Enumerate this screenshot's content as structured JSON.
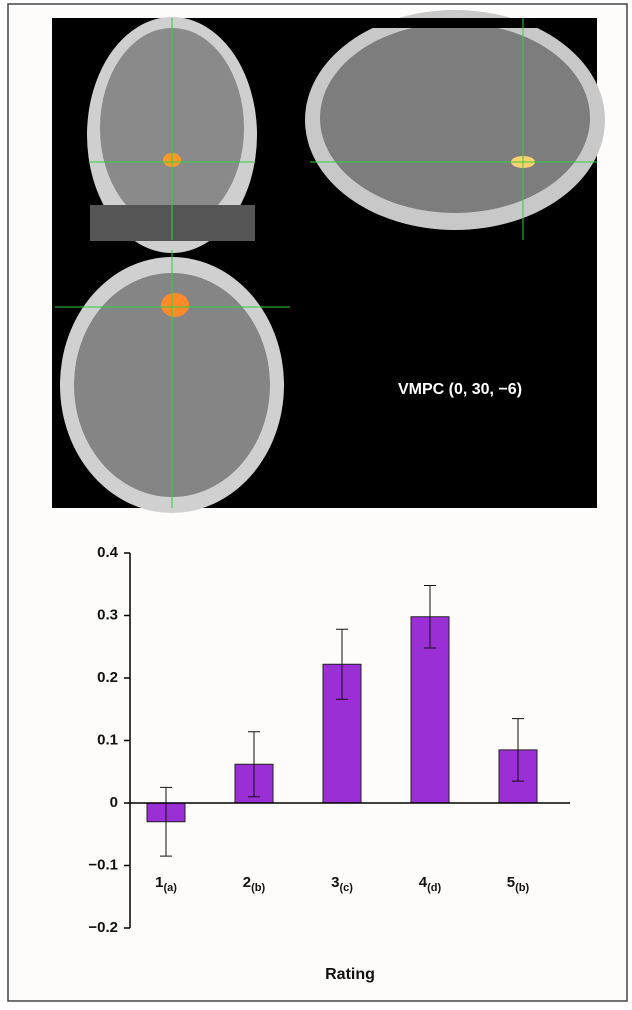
{
  "annotation": "VMPC (0, 30, −6)",
  "chart_data": {
    "type": "bar",
    "xlabel": "Rating",
    "categories": [
      "1",
      "2",
      "3",
      "4",
      "5"
    ],
    "subscripts": [
      "(a)",
      "(b)",
      "(c)",
      "(d)",
      "(b)"
    ],
    "values": [
      -0.03,
      0.062,
      0.222,
      0.298,
      0.085
    ],
    "errors": [
      0.055,
      0.052,
      0.056,
      0.05,
      0.05
    ],
    "color": "#9b2fd6",
    "ylim": [
      -0.2,
      0.4
    ],
    "yticks": [
      {
        "value": -0.2,
        "label": "−0.2"
      },
      {
        "value": -0.1,
        "label": "−0.1"
      },
      0,
      0.1,
      0.2,
      0.3,
      0.4
    ]
  }
}
